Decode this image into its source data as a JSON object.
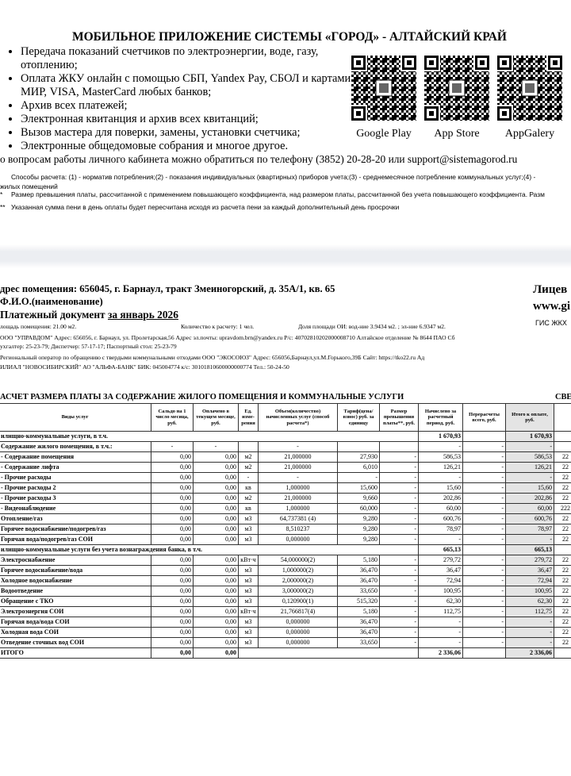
{
  "app": {
    "title": "МОБИЛЬНОЕ ПРИЛОЖЕНИЕ СИСТЕМЫ «ГОРОД» - АЛТАЙСКИЙ КРАЙ",
    "features": [
      "Передача показаний счетчиков по электроэнергии, воде, газу, отоплению;",
      "Оплата ЖКУ онлайн с помощью СБП, Yandex Pay, СБОЛ и картами МИР, VISA, MasterCard любых банков;",
      "Архив всех платежей;",
      "Электронная квитанция и архив всех квитанций;",
      "Вызов мастера для поверки, замены, установки счетчика;",
      "Электронные общедомовые собрания и многое другое."
    ],
    "stores": [
      "Google Play",
      "App Store",
      "AppGalery"
    ],
    "support": "о вопросам работы личного кабинета можно обратиться по телефону (3852) 20-28-20 или support@sistemagorod.ru"
  },
  "notes": [
    "Способы расчета: (1) - норматив потребления;(2) - показания индивидуальных (квартирных) приборов учета;(3) - среднемесячное потребление коммунальных услуг;(4) -",
    "жилых помещений",
    "Размер превышения платы, рассчитанной с применением повышающего коэффициента, над размером платы, рассчитанной без учета повышающего коэффициента. Разм",
    "Указанная сумма пени в день оплаты будет пересчитана исходя из расчета пени за каждый дополнительный день просрочки"
  ],
  "note_marks": [
    "*",
    "**"
  ],
  "bill": {
    "address": "дрес помещения: 656045, г. Барнаул, тракт Змеиногорский, д. 35А/1, кв. 65",
    "name": "Ф.И.О.(наименование)",
    "doc_title": "Платежный документ",
    "period": "за январь 2026",
    "account": "Лицев",
    "site": "www.gi",
    "gis": "ГИС ЖКХ",
    "area": "лощадь помещения: 21.00 м2.",
    "persons": "Количество к расчету: 1 чел.",
    "share": "Доля площади ОИ: вод-ние 3.9434 м2. ; эл-ние 6.9347 м2.",
    "org1": "ООО \"УПРАВДОМ\"  Адрес: 656056, г. Барнаул, ул. Пролетарская,56  Адрес эл.почты: upravdom.brn@yandex.ru  Р/с: 40702810202000008710  Алтайское отделение № 8644 ПАО Сб",
    "org1_phones": "ухгалтер: 25-23-79; Диспетчер: 57-17-17; Паспортный стол: 25-23-79",
    "org2": "Региональный оператор по обращению с твердыми коммунальными отходами  ООО \"ЭКОСОЮЗ\"  Адрес: 656056,Барнаул,ул.М.Горького,39Б  Сайт: https://tko22.ru  Ад",
    "org2_bank": "ИЛИАЛ \"НОВОСИБИРСКИЙ\" АО \"АЛЬФА-БАНК\"  БИК: 045004774 к/с: 30101810600000000774  Тел.: 50-24-50",
    "calc_title": "АСЧЕТ РАЗМЕРА ПЛАТЫ ЗА СОДЕРЖАНИЕ ЖИЛОГО ПОМЕЩЕНИЯ И КОММУНАЛЬНЫЕ УСЛУГИ",
    "side_title": "СВЕ"
  },
  "table": {
    "columns": [
      "Виды услуг",
      "Сальдо на 1 число месяца, руб.",
      "Оплачено в текущем месяце, руб.",
      "Ед. изме- рения",
      "Объем(количество) начисленных услуг (способ расчета*)",
      "Тариф(цена/ взнос) руб. за единицу",
      "Размер превышения платы**, руб.",
      "Начислено за расчетный период, руб.",
      "Перерасчеты всего, руб.",
      "Итого к оплате, руб."
    ],
    "rows": [
      [
        "илищно-коммунальные услуги, в т.ч.",
        "1 670,93",
        "1 670,93"
      ],
      [
        "Содержание жилого помещения, в т.ч.:",
        "-",
        "-",
        "-",
        "-",
        "-",
        "-"
      ],
      [
        "- Содержание помещения",
        "0,00",
        "0,00",
        "м2",
        "21,000000",
        "27,930",
        "-",
        "586,53",
        "-",
        "586,53",
        "22"
      ],
      [
        "- Содержание лифта",
        "0,00",
        "0,00",
        "м2",
        "21,000000",
        "6,010",
        "-",
        "126,21",
        "-",
        "126,21",
        "22"
      ],
      [
        "- Прочие расходы",
        "0,00",
        "0,00",
        "-",
        "-",
        "-",
        "-",
        "-",
        "-",
        "-",
        "22"
      ],
      [
        "- Прочие расходы 2",
        "0,00",
        "0,00",
        "кв",
        "1,000000",
        "15,600",
        "-",
        "15,60",
        "-",
        "15,60",
        "22"
      ],
      [
        "- Прочие расходы 3",
        "0,00",
        "0,00",
        "м2",
        "21,000000",
        "9,660",
        "-",
        "202,86",
        "-",
        "202,86",
        "22"
      ],
      [
        "- Видеонаблюдение",
        "0,00",
        "0,00",
        "кв",
        "1,000000",
        "60,000",
        "-",
        "60,00",
        "-",
        "60,00",
        "222"
      ],
      [
        "Отопление/газ",
        "0,00",
        "0,00",
        "м3",
        "64,737381 (4)",
        "9,280",
        "-",
        "600,76",
        "-",
        "600,76",
        "22"
      ],
      [
        "Горячее водоснабжение/подогрев/газ",
        "0,00",
        "0,00",
        "м3",
        "8,510237",
        "9,280",
        "-",
        "78,97",
        "-",
        "78,97",
        "22"
      ],
      [
        "Горячая вода/подогрев/газ СОИ",
        "0,00",
        "0,00",
        "м3",
        "0,000000",
        "9,280",
        "-",
        "-",
        "-",
        "-",
        "22"
      ],
      [
        "илищно-коммунальные услуги без учета вознаграждения банка, в т.ч.",
        "665,13",
        "665,13"
      ],
      [
        "Электроснабжение",
        "0,00",
        "0,00",
        "кВт·ч",
        "54,000000(2)",
        "5,180",
        "-",
        "279,72",
        "-",
        "279,72",
        "22"
      ],
      [
        "Горячее водоснабжение/вода",
        "0,00",
        "0,00",
        "м3",
        "1,000000(2)",
        "36,470",
        "-",
        "36,47",
        "-",
        "36,47",
        "22"
      ],
      [
        "Холодное водоснабжение",
        "0,00",
        "0,00",
        "м3",
        "2,000000(2)",
        "36,470",
        "-",
        "72,94",
        "-",
        "72,94",
        "22"
      ],
      [
        "Водоотведение",
        "0,00",
        "0,00",
        "м3",
        "3,000000(2)",
        "33,650",
        "-",
        "100,95",
        "-",
        "100,95",
        "22"
      ],
      [
        "Обращение с ТКО",
        "0,00",
        "0,00",
        "м3",
        "0,120900(1)",
        "515,320",
        "-",
        "62,30",
        "-",
        "62,30",
        "22"
      ],
      [
        "Электроэнергия СОИ",
        "0,00",
        "0,00",
        "кВт·ч",
        "21,766817(4)",
        "5,180",
        "-",
        "112,75",
        "-",
        "112,75",
        "22"
      ],
      [
        "Горячая вода/вода СОИ",
        "0,00",
        "0,00",
        "м3",
        "0,000000",
        "36,470",
        "-",
        "-",
        "-",
        "-",
        "22"
      ],
      [
        "Холодная вода СОИ",
        "0,00",
        "0,00",
        "м3",
        "0,000000",
        "36,470",
        "-",
        "-",
        "-",
        "-",
        "22"
      ],
      [
        "Отведение сточных вод СОИ",
        "0,00",
        "0,00",
        "м3",
        "0,000000",
        "33,650",
        "-",
        "-",
        "-",
        "-",
        "22"
      ],
      [
        "ИТОГО",
        "0,00",
        "0,00",
        "2 336,06",
        "2 336,06"
      ]
    ]
  }
}
